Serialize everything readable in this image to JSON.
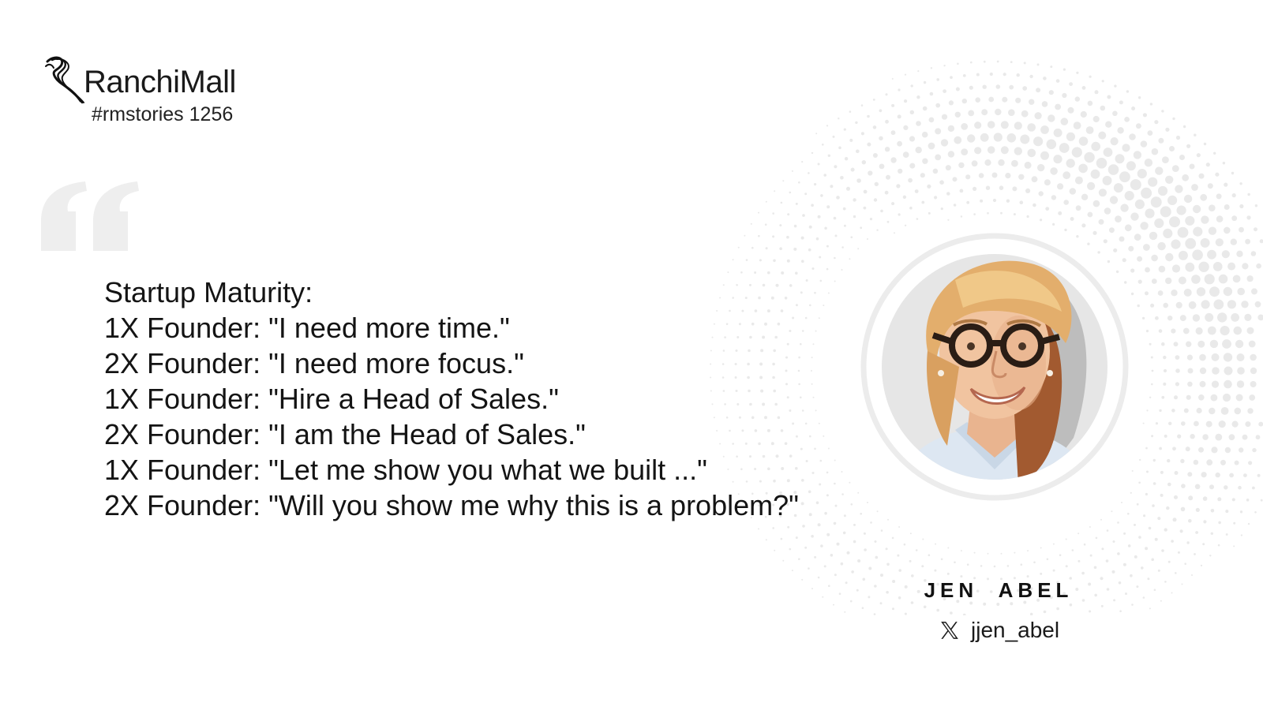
{
  "brand": {
    "name": "RanchiMall",
    "tag": "#rmstories 1256",
    "logo_icon": "ranchimall-logo-icon"
  },
  "quote": {
    "lines": [
      "Startup Maturity:",
      "1X Founder: \"I need more time.\"",
      "2X Founder: \"I need more focus.\"",
      "1X Founder: \"Hire a Head of Sales.\"",
      "2X Founder: \"I am the Head of Sales.\"",
      "1X Founder: \"Let me show you what we built ...\"",
      "2X Founder: \"Will you show me why this is a problem?\""
    ],
    "quote_icon": "quotation-mark-icon"
  },
  "person": {
    "name": "JEN  ABEL",
    "handle": "jjen_abel",
    "social_icon": "x-logo-icon",
    "portrait": "portrait-illustration"
  },
  "colors": {
    "background": "#ffffff",
    "text": "#141414",
    "quote_mark": "#eeeeee",
    "dots": "#e9e9e9"
  }
}
